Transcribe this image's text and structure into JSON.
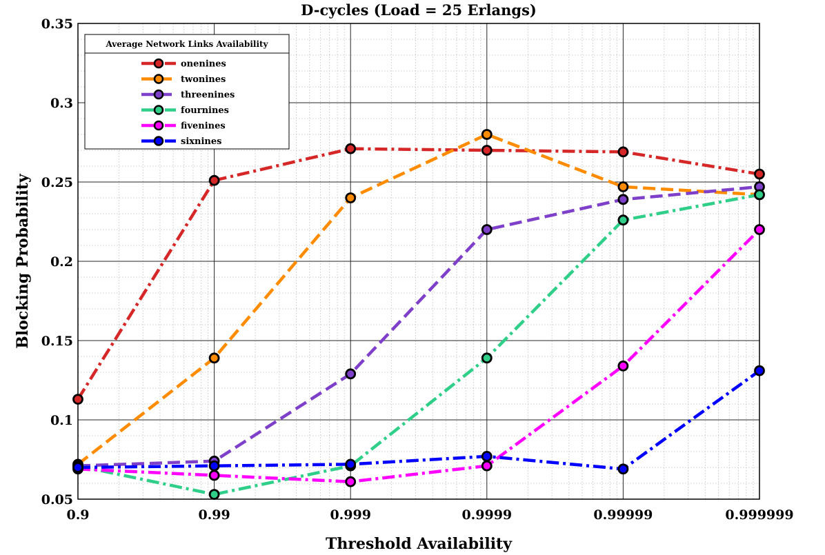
{
  "chart_data": {
    "type": "line",
    "title": "D-cycles (Load  = 25 Erlangs)",
    "xlabel": "Threshold Availability",
    "ylabel": "Blocking Probability",
    "x_scale": "log (1 - availability)",
    "x": [
      "0.9",
      "0.99",
      "0.999",
      "0.9999",
      "0.99999",
      "0.999999"
    ],
    "y_ticks": [
      "0.05",
      "0.1",
      "0.15",
      "0.2",
      "0.25",
      "0.3",
      "0.35"
    ],
    "ylim": [
      0.05,
      0.35
    ],
    "grid": "major and minor",
    "legend": {
      "title": "Average Network Links Availability",
      "placement": "top-left"
    },
    "series": [
      {
        "name": "onenines",
        "color": "#d62728",
        "line": "dash-dot",
        "values": [
          0.113,
          0.251,
          0.271,
          0.27,
          0.269,
          0.255
        ]
      },
      {
        "name": "twonines",
        "color": "#ff8c00",
        "line": "dashed",
        "values": [
          0.072,
          0.139,
          0.24,
          0.28,
          0.247,
          0.242
        ]
      },
      {
        "name": "threenines",
        "color": "#7e3fc9",
        "line": "dashed",
        "values": [
          0.071,
          0.074,
          0.129,
          0.22,
          0.239,
          0.247
        ]
      },
      {
        "name": "fournines",
        "color": "#2fcf8a",
        "line": "dash-dot",
        "values": [
          0.071,
          0.053,
          0.071,
          0.139,
          0.226,
          0.242
        ]
      },
      {
        "name": "fivenines",
        "color": "#ff00ff",
        "line": "dash-dot",
        "values": [
          0.069,
          0.065,
          0.061,
          0.071,
          0.134,
          0.22
        ]
      },
      {
        "name": "sixnines",
        "color": "#0000ff",
        "line": "dash-dot",
        "values": [
          0.07,
          0.071,
          0.072,
          0.077,
          0.069,
          0.131
        ]
      }
    ]
  }
}
